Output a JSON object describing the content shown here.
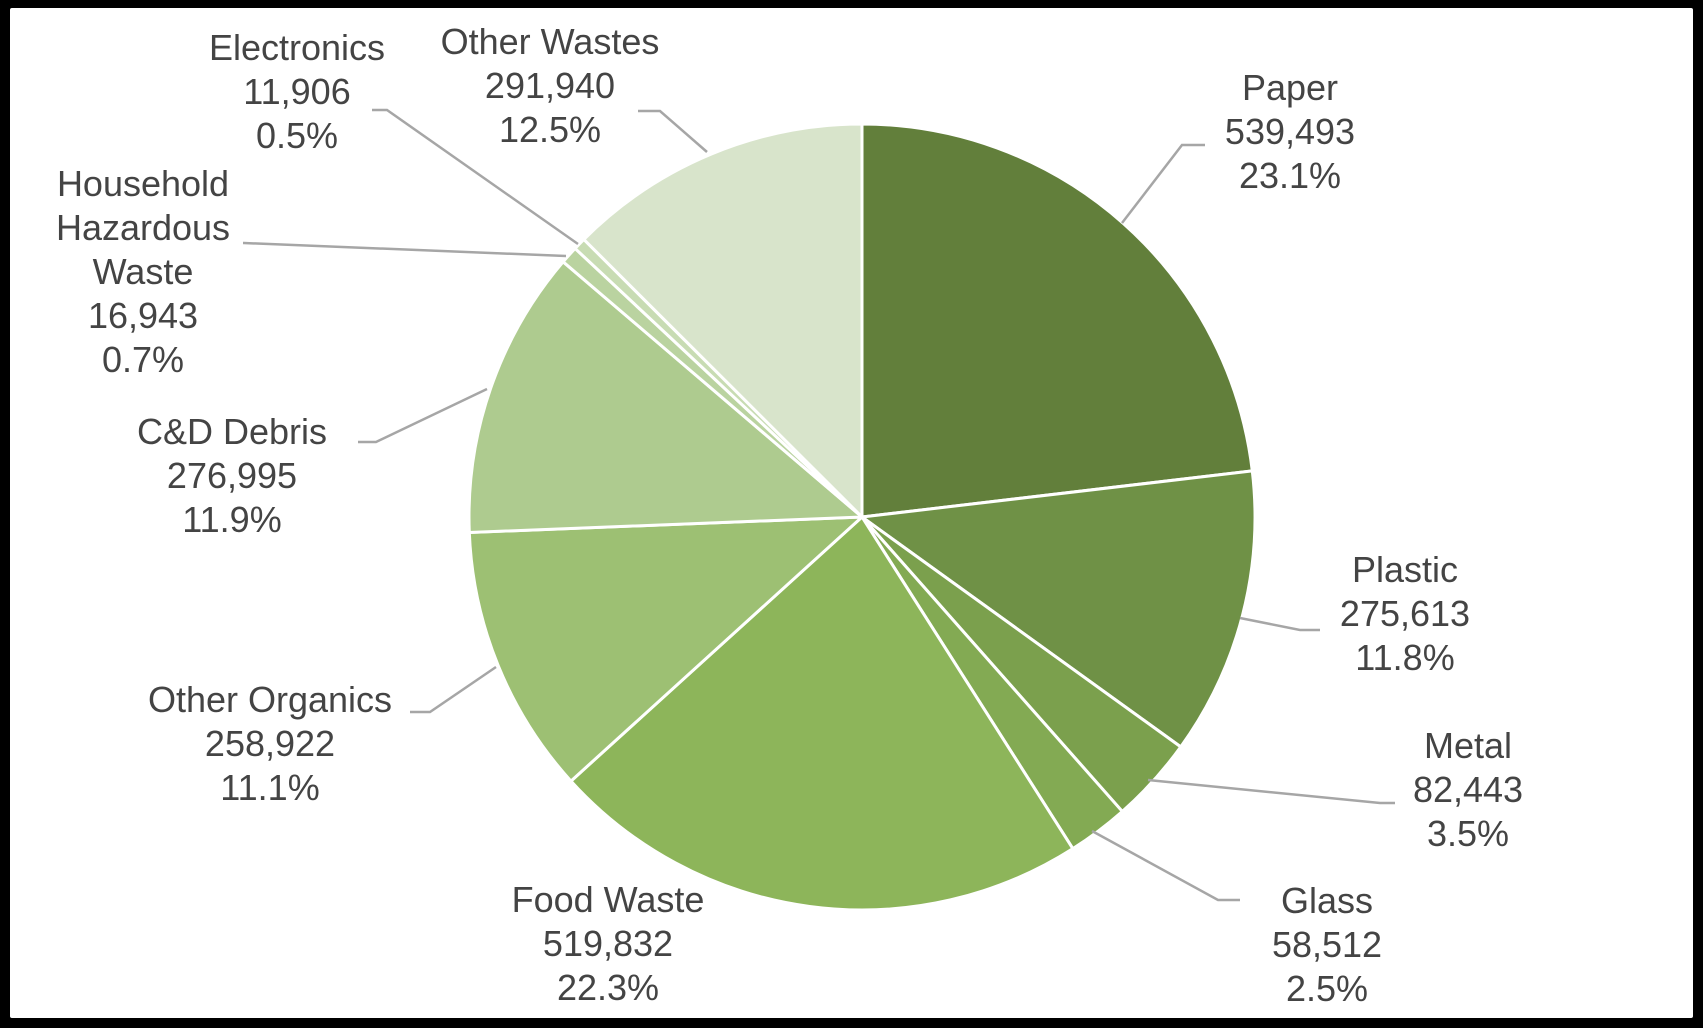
{
  "chart_data": {
    "type": "pie",
    "title": "",
    "slices": [
      {
        "name": "Paper",
        "value_text": "539,493",
        "pct_text": "23.1%",
        "value": 539493,
        "color": "#627f3b"
      },
      {
        "name": "Plastic",
        "value_text": "275,613",
        "pct_text": "11.8%",
        "value": 275613,
        "color": "#6f9146"
      },
      {
        "name": "Metal",
        "value_text": "82,443",
        "pct_text": "3.5%",
        "value": 82443,
        "color": "#7ba04d"
      },
      {
        "name": "Glass",
        "value_text": "58,512",
        "pct_text": "2.5%",
        "value": 58512,
        "color": "#83aa53"
      },
      {
        "name": "Food Waste",
        "value_text": "519,832",
        "pct_text": "22.3%",
        "value": 519832,
        "color": "#8db55a"
      },
      {
        "name": "Other Organics",
        "value_text": "258,922",
        "pct_text": "11.1%",
        "value": 258922,
        "color": "#9dc073"
      },
      {
        "name": "C&D Debris",
        "value_text": "276,995",
        "pct_text": "11.9%",
        "value": 276995,
        "color": "#aecb8f"
      },
      {
        "name": "Household Hazardous Waste",
        "value_text": "16,943",
        "pct_text": "0.7%",
        "value": 16943,
        "color": "#bad3a0"
      },
      {
        "name": "Electronics",
        "value_text": "11,906",
        "pct_text": "0.5%",
        "value": 11906,
        "color": "#c8dcb3"
      },
      {
        "name": "Other Wastes",
        "value_text": "291,940",
        "pct_text": "12.5%",
        "value": 291940,
        "color": "#d8e4cb"
      }
    ]
  }
}
